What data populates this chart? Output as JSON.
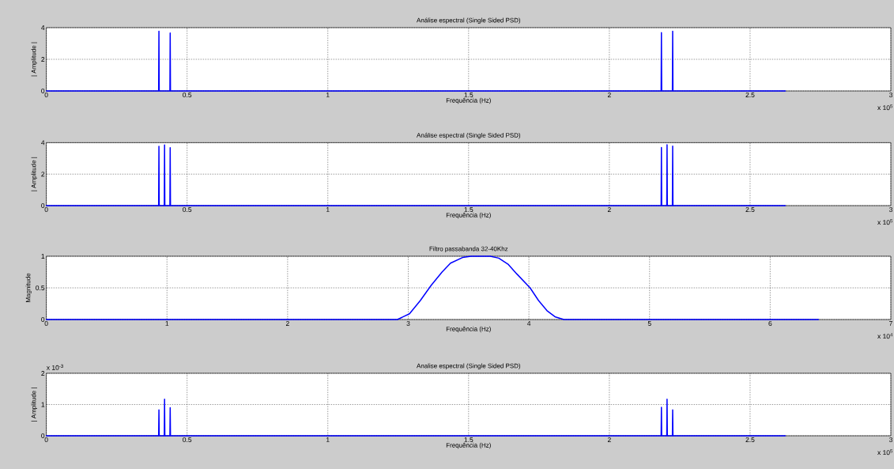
{
  "chart_data": [
    {
      "type": "line",
      "title": "Análise espectral (Single Sided PSD)",
      "xlabel": "Frequência (Hz)",
      "ylabel": "| Amplitude |",
      "series": [
        {
          "color": "#0000ff",
          "x": [
            0,
            0.399,
            0.4,
            0.401,
            0.439,
            0.44,
            0.441,
            2.184,
            2.185,
            2.186,
            2.224,
            2.225,
            2.226,
            2.625
          ],
          "values": [
            0,
            0,
            3.77,
            0,
            0,
            3.66,
            0,
            0,
            3.69,
            0,
            0,
            3.78,
            0,
            0
          ]
        }
      ],
      "xlim": [
        0,
        3
      ],
      "xticks": [
        0,
        0.5,
        1,
        1.5,
        2,
        2.5,
        3
      ],
      "ylim": [
        0,
        4
      ],
      "yticks": [
        0,
        2,
        4
      ],
      "grid": true,
      "annotations": [
        "x 10$^{5}$"
      ]
    },
    {
      "type": "line",
      "title": "Análise espectral (Single Sided PSD)",
      "xlabel": "Frequência (Hz)",
      "ylabel": "| Amplitude |",
      "series": [
        {
          "color": "#0000ff",
          "x": [
            0,
            0.399,
            0.4,
            0.401,
            0.419,
            0.42,
            0.421,
            0.439,
            0.44,
            0.441,
            2.184,
            2.185,
            2.186,
            2.204,
            2.205,
            2.206,
            2.224,
            2.225,
            2.226,
            2.625
          ],
          "values": [
            0,
            0,
            3.77,
            0,
            0,
            3.86,
            0,
            0,
            3.68,
            0,
            0,
            3.69,
            0,
            0,
            3.87,
            0,
            0,
            3.78,
            0,
            0
          ]
        }
      ],
      "xlim": [
        0,
        3
      ],
      "xticks": [
        0,
        0.5,
        1,
        1.5,
        2,
        2.5,
        3
      ],
      "ylim": [
        0,
        4
      ],
      "yticks": [
        0,
        2,
        4
      ],
      "grid": true,
      "annotations": [
        "x 10$^{5}$"
      ]
    },
    {
      "type": "line",
      "title": "Filtro passabanda 32-40Khz",
      "xlabel": "Frequência (Hz)",
      "ylabel": "Magnitude",
      "series": [
        {
          "color": "#0000ff",
          "x": [
            0,
            2.91,
            3.01,
            3.1,
            3.19,
            3.28,
            3.35,
            3.45,
            3.52,
            3.68,
            3.75,
            3.83,
            3.9,
            4.01,
            4.08,
            4.15,
            4.22,
            4.29,
            6.4
          ],
          "values": [
            0,
            0,
            0.09,
            0.3,
            0.54,
            0.75,
            0.89,
            0.98,
            1,
            1,
            0.97,
            0.87,
            0.72,
            0.5,
            0.3,
            0.14,
            0.04,
            0,
            0
          ]
        }
      ],
      "xlim": [
        0,
        7
      ],
      "xticks": [
        0,
        1,
        2,
        3,
        4,
        5,
        6,
        7
      ],
      "ylim": [
        0,
        1
      ],
      "yticks": [
        0,
        0.5,
        1
      ],
      "grid": true,
      "annotations": [
        "x 10$^{4}$"
      ]
    },
    {
      "type": "line",
      "title": "Analise espectral (Single Sided PSD)",
      "xlabel": "Frequência (Hz)",
      "ylabel": "| Amplitude |",
      "series": [
        {
          "color": "#0000ff",
          "x": [
            0,
            0.399,
            0.4,
            0.401,
            0.419,
            0.42,
            0.421,
            0.439,
            0.44,
            0.441,
            2.184,
            2.185,
            2.186,
            2.204,
            2.205,
            2.206,
            2.224,
            2.225,
            2.226,
            2.625
          ],
          "values": [
            0,
            0,
            0.83,
            0,
            0,
            1.17,
            0,
            0,
            0.9,
            0,
            0,
            0.91,
            0,
            0,
            1.17,
            0,
            0,
            0.83,
            0,
            0
          ]
        }
      ],
      "xlim": [
        0,
        3
      ],
      "xticks": [
        0,
        0.5,
        1,
        1.5,
        2,
        2.5,
        3
      ],
      "ylim": [
        0,
        2
      ],
      "yticks": [
        0,
        1,
        2
      ],
      "grid": true,
      "annotations": [
        "x 10$^{5}$",
        "x 10$^{-3}$"
      ]
    }
  ]
}
